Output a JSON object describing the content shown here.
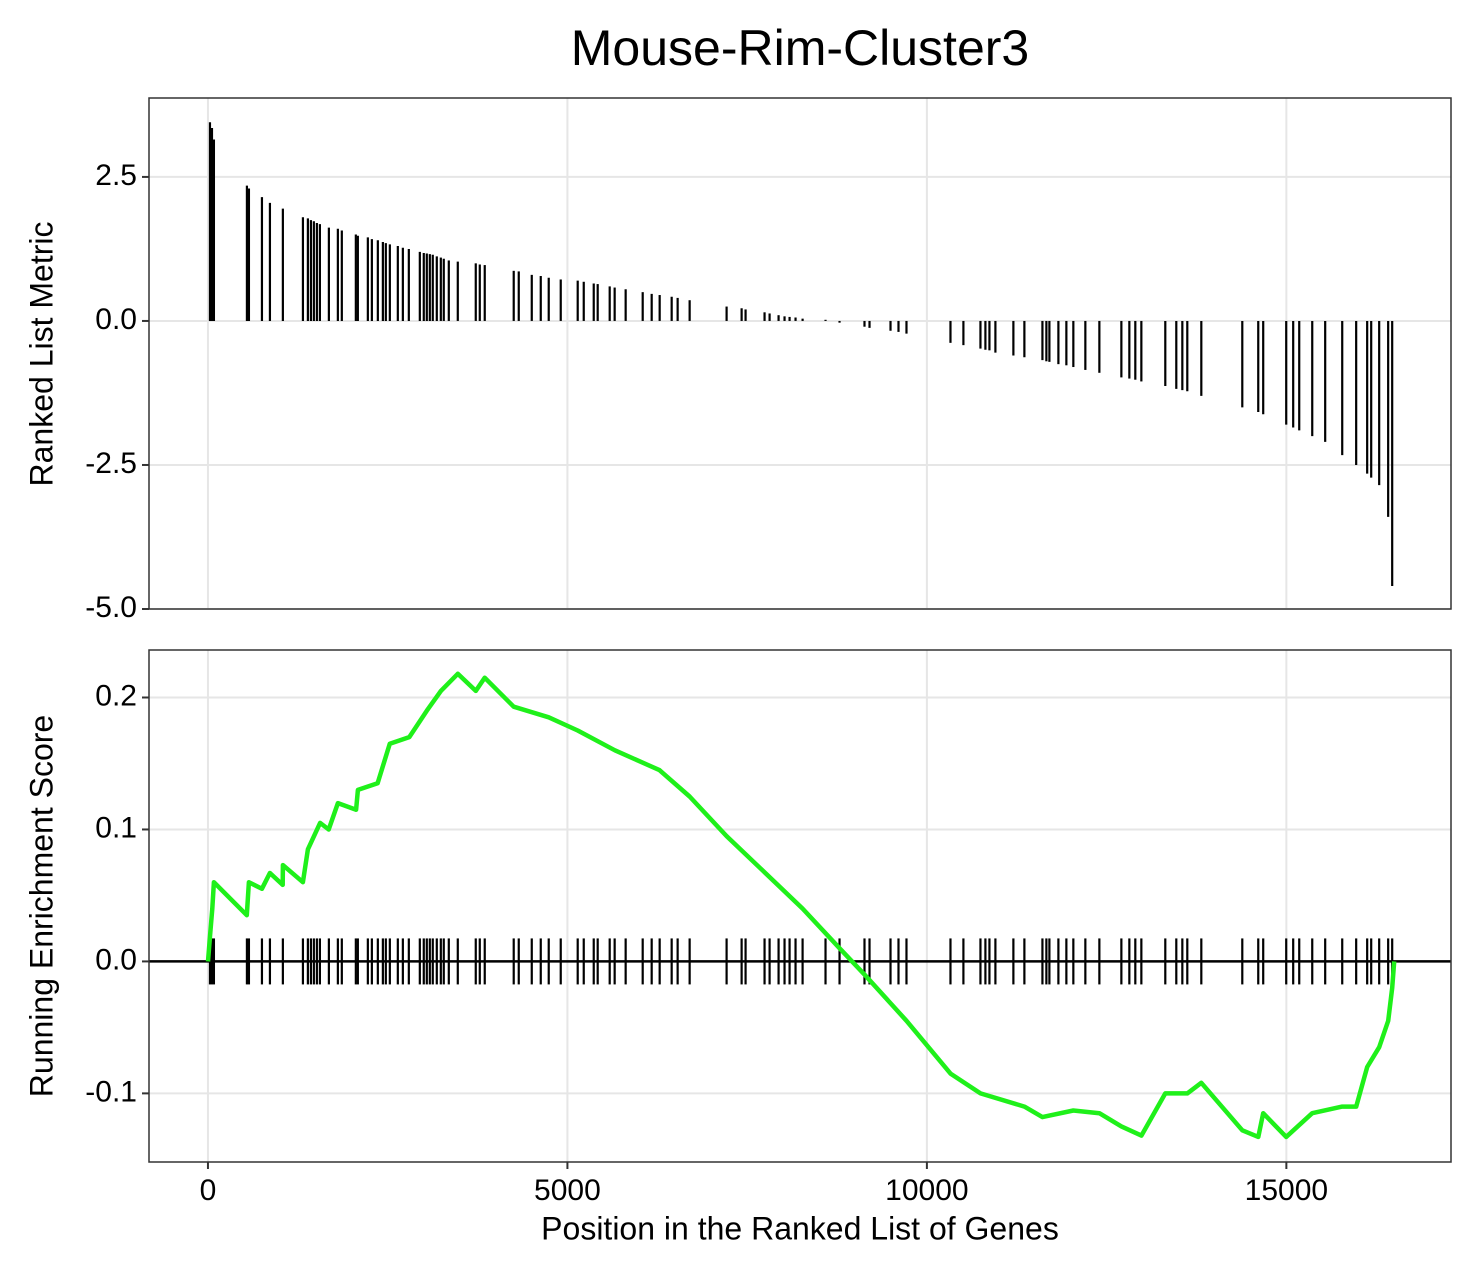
{
  "chart_data": [
    {
      "type": "bar",
      "title": "Mouse-Rim-Cluster3",
      "ylabel": "Ranked List Metric",
      "color": "#000000",
      "x": [
        28,
        56,
        83,
        542,
        570,
        751,
        862,
        1042,
        1321,
        1390,
        1432,
        1473,
        1515,
        1557,
        1682,
        1807,
        1862,
        2057,
        2085,
        2224,
        2280,
        2363,
        2433,
        2474,
        2530,
        2641,
        2711,
        2794,
        2947,
        3002,
        3044,
        3086,
        3127,
        3183,
        3239,
        3280,
        3350,
        3475,
        3725,
        3781,
        3850,
        4253,
        4323,
        4504,
        4629,
        4740,
        4907,
        5143,
        5227,
        5366,
        5421,
        5588,
        5657,
        5810,
        6047,
        6172,
        6283,
        6450,
        6533,
        6700,
        7214,
        7423,
        7478,
        7742,
        7812,
        7937,
        8020,
        8090,
        8173,
        8271,
        8590,
        8785,
        9132,
        9202,
        9494,
        9605,
        9716,
        10328,
        10508,
        10745,
        10814,
        10870,
        10953,
        11203,
        11356,
        11607,
        11662,
        11704,
        11829,
        11940,
        12037,
        12204,
        12399,
        12705,
        12816,
        12899,
        12983,
        13316,
        13469,
        13553,
        13622,
        13817,
        14387,
        14609,
        14678,
        14998,
        15095,
        15179,
        15360,
        15540,
        15777,
        15971,
        16124,
        16180,
        16291,
        16416,
        16472
      ],
      "values": [
        3.45,
        3.35,
        3.15,
        2.35,
        2.3,
        2.15,
        2.05,
        1.95,
        1.8,
        1.78,
        1.75,
        1.73,
        1.7,
        1.68,
        1.62,
        1.6,
        1.57,
        1.5,
        1.48,
        1.45,
        1.42,
        1.4,
        1.37,
        1.35,
        1.33,
        1.3,
        1.27,
        1.25,
        1.2,
        1.18,
        1.17,
        1.16,
        1.15,
        1.12,
        1.1,
        1.08,
        1.05,
        1.03,
        1.0,
        0.98,
        0.97,
        0.87,
        0.86,
        0.8,
        0.78,
        0.75,
        0.72,
        0.7,
        0.68,
        0.65,
        0.64,
        0.6,
        0.58,
        0.55,
        0.5,
        0.47,
        0.45,
        0.42,
        0.4,
        0.36,
        0.25,
        0.22,
        0.2,
        0.15,
        0.13,
        0.1,
        0.08,
        0.07,
        0.06,
        0.04,
        0.02,
        -0.03,
        -0.1,
        -0.12,
        -0.17,
        -0.19,
        -0.22,
        -0.38,
        -0.42,
        -0.48,
        -0.5,
        -0.51,
        -0.55,
        -0.6,
        -0.63,
        -0.68,
        -0.7,
        -0.71,
        -0.75,
        -0.77,
        -0.8,
        -0.85,
        -0.9,
        -0.98,
        -1.0,
        -1.02,
        -1.05,
        -1.13,
        -1.18,
        -1.2,
        -1.22,
        -1.3,
        -1.5,
        -1.58,
        -1.62,
        -1.8,
        -1.85,
        -1.9,
        -2.0,
        -2.1,
        -2.33,
        -2.5,
        -2.65,
        -2.72,
        -2.85,
        -3.4,
        -4.6
      ],
      "xlim": [
        -820,
        17290
      ],
      "xticks": [
        0,
        5000,
        10000,
        15000
      ],
      "ylim": [
        -5.0,
        3.87
      ],
      "yticks": [
        {
          "value": 2.5,
          "label": "2.5"
        },
        {
          "value": 0,
          "label": "0.0"
        },
        {
          "value": -2.5,
          "label": "-2.5"
        },
        {
          "value": -5,
          "label": "-5.0"
        }
      ],
      "grid": true
    },
    {
      "type": "line",
      "ylabel": "Running Enrichment Score",
      "xlabel": "Position in the Ranked List of Genes",
      "color": "#1ff01a",
      "x": [
        0,
        30,
        60,
        83,
        540,
        570,
        750,
        862,
        1040,
        1042,
        1320,
        1390,
        1560,
        1680,
        1807,
        2060,
        2085,
        2360,
        2530,
        2800,
        3044,
        3240,
        3475,
        3725,
        3850,
        4253,
        4740,
        5143,
        5660,
        6280,
        6700,
        7214,
        8271,
        8785,
        9132,
        9716,
        10328,
        10745,
        11356,
        11607,
        12037,
        12399,
        12705,
        12983,
        13316,
        13622,
        13817,
        14387,
        14609,
        14678,
        14998,
        15360,
        15777,
        15971,
        16124,
        16291,
        16416,
        16472,
        16500
      ],
      "values": [
        0,
        0.02,
        0.04,
        0.06,
        0.035,
        0.06,
        0.055,
        0.067,
        0.058,
        0.073,
        0.06,
        0.085,
        0.105,
        0.1,
        0.12,
        0.115,
        0.13,
        0.135,
        0.165,
        0.17,
        0.19,
        0.205,
        0.218,
        0.205,
        0.215,
        0.193,
        0.185,
        0.175,
        0.16,
        0.145,
        0.125,
        0.095,
        0.04,
        0.01,
        -0.01,
        -0.045,
        -0.085,
        -0.1,
        -0.11,
        -0.118,
        -0.113,
        -0.115,
        -0.125,
        -0.132,
        -0.1,
        -0.1,
        -0.092,
        -0.128,
        -0.133,
        -0.115,
        -0.133,
        -0.115,
        -0.11,
        -0.11,
        -0.08,
        -0.065,
        -0.045,
        -0.02,
        0
      ],
      "xlim": [
        -820,
        17290
      ],
      "xticks": [
        0,
        5000,
        10000,
        15000
      ],
      "ylim": [
        -0.152,
        0.236
      ],
      "yticks": [
        {
          "value": 0.2,
          "label": "0.2"
        },
        {
          "value": 0.1,
          "label": "0.1"
        },
        {
          "value": 0,
          "label": "0.0"
        },
        {
          "value": -0.1,
          "label": "-0.1"
        }
      ],
      "grid": true
    }
  ]
}
